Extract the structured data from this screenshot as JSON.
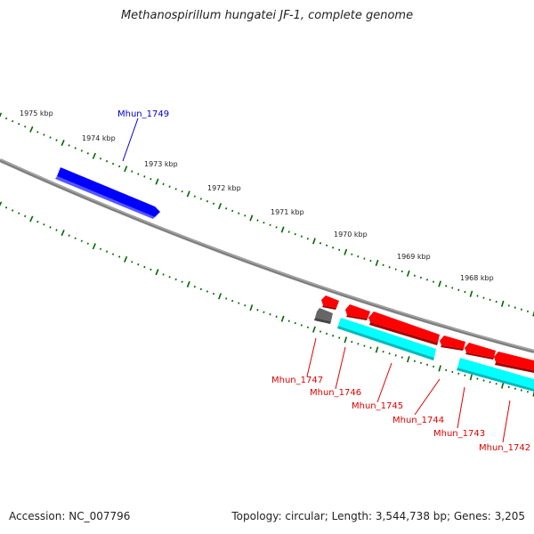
{
  "title": "Methanospirillum hungatei JF-1, complete genome",
  "footer": {
    "accession": "Accession: NC_007796",
    "summary": "Topology: circular; Length: 3,544,738 bp; Genes: 3,205"
  },
  "scale_labels": [
    "1975 kbp",
    "1974 kbp",
    "1973 kbp",
    "1972 kbp",
    "1971 kbp",
    "1970 kbp",
    "1969 kbp",
    "1968 kbp"
  ],
  "genes": [
    {
      "name": "Mhun_1749",
      "color": "#0000cc"
    },
    {
      "name": "Mhun_1747",
      "color": "#dd0000"
    },
    {
      "name": "Mhun_1746",
      "color": "#dd0000"
    },
    {
      "name": "Mhun_1745",
      "color": "#dd0000"
    },
    {
      "name": "Mhun_1744",
      "color": "#dd0000"
    },
    {
      "name": "Mhun_1743",
      "color": "#dd0000"
    },
    {
      "name": "Mhun_1742",
      "color": "#dd0000"
    }
  ],
  "colors": {
    "backbone": "#7f7f7f",
    "tick": "#006600",
    "forward_gene": "#0000ff",
    "reverse_gene": "#ff0000",
    "rna": "#666666",
    "cds": "#00ffff"
  }
}
